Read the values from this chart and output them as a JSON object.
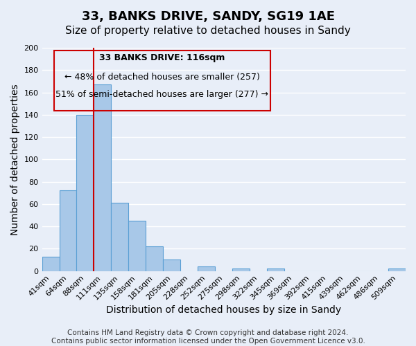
{
  "title": "33, BANKS DRIVE, SANDY, SG19 1AE",
  "subtitle": "Size of property relative to detached houses in Sandy",
  "xlabel": "Distribution of detached houses by size in Sandy",
  "ylabel": "Number of detached properties",
  "bins": [
    "41sqm",
    "64sqm",
    "88sqm",
    "111sqm",
    "135sqm",
    "158sqm",
    "181sqm",
    "205sqm",
    "228sqm",
    "252sqm",
    "275sqm",
    "298sqm",
    "322sqm",
    "345sqm",
    "369sqm",
    "392sqm",
    "415sqm",
    "439sqm",
    "462sqm",
    "486sqm",
    "509sqm"
  ],
  "values": [
    13,
    72,
    140,
    167,
    61,
    45,
    22,
    10,
    0,
    4,
    0,
    2,
    0,
    2,
    0,
    0,
    0,
    0,
    0,
    0,
    2
  ],
  "bar_color": "#a8c8e8",
  "bar_edge_color": "#5a9fd4",
  "ylim": [
    0,
    200
  ],
  "yticks": [
    0,
    20,
    40,
    60,
    80,
    100,
    120,
    140,
    160,
    180,
    200
  ],
  "property_line_bin_index": 3,
  "property_line_color": "#cc0000",
  "annotation_text_line1": "33 BANKS DRIVE: 116sqm",
  "annotation_text_line2": "← 48% of detached houses are smaller (257)",
  "annotation_text_line3": "51% of semi-detached houses are larger (277) →",
  "annotation_box_color": "#cc0000",
  "footer_line1": "Contains HM Land Registry data © Crown copyright and database right 2024.",
  "footer_line2": "Contains public sector information licensed under the Open Government Licence v3.0.",
  "bg_color": "#e8eef8",
  "grid_color": "#ffffff",
  "title_fontsize": 13,
  "subtitle_fontsize": 11,
  "axis_label_fontsize": 10,
  "tick_fontsize": 8,
  "annotation_fontsize": 9,
  "footer_fontsize": 7.5
}
